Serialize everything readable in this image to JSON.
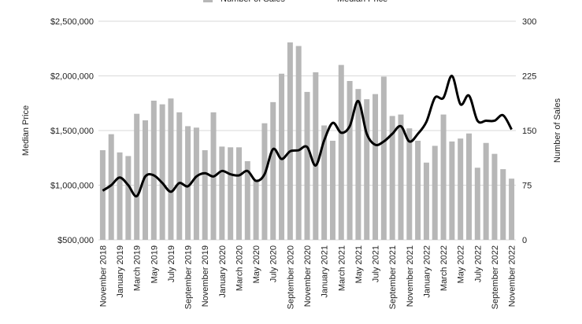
{
  "chart_data": {
    "type": "bar-line",
    "categories": [
      "November 2018",
      null,
      "January 2019",
      null,
      "March 2019",
      null,
      "May 2019",
      null,
      "July 2019",
      null,
      "September 2019",
      null,
      "November 2019",
      null,
      "January 2020",
      null,
      "March 2020",
      null,
      "May 2020",
      null,
      "July 2020",
      null,
      "September 2020",
      null,
      "November 2020",
      null,
      "January 2021",
      null,
      "March 2021",
      null,
      "May 2021",
      null,
      "July 2021",
      null,
      "September 2021",
      null,
      "November 2021",
      null,
      "January 2022",
      null,
      "March 2022",
      null,
      "May 2022",
      null,
      "July 2022",
      null,
      "September 2022",
      null,
      "November 2022"
    ],
    "series": [
      {
        "name": "Number of Sales",
        "color": "#b7b7b7",
        "kind": "bar",
        "axis": "y2",
        "values": [
          123,
          145,
          120,
          115,
          173,
          164,
          191,
          186,
          194,
          175,
          156,
          154,
          123,
          175,
          128,
          127,
          127,
          108,
          81,
          160,
          189,
          228,
          271,
          266,
          203,
          230,
          157,
          136,
          240,
          218,
          207,
          193,
          200,
          224,
          170,
          172,
          153,
          136,
          106,
          129,
          172,
          135,
          139,
          146,
          99,
          133,
          118,
          97,
          84
        ]
      },
      {
        "name": "Median Price",
        "color": "#000000",
        "kind": "line",
        "values": [
          950000,
          1000000,
          1070000,
          1000000,
          900000,
          1080000,
          1090000,
          1020000,
          940000,
          1020000,
          990000,
          1080000,
          1110000,
          1080000,
          1130000,
          1100000,
          1090000,
          1130000,
          1040000,
          1100000,
          1330000,
          1240000,
          1310000,
          1320000,
          1350000,
          1180000,
          1410000,
          1570000,
          1480000,
          1540000,
          1770000,
          1470000,
          1370000,
          1400000,
          1470000,
          1540000,
          1400000,
          1470000,
          1580000,
          1800000,
          1800000,
          2000000,
          1740000,
          1820000,
          1590000,
          1590000,
          1590000,
          1640000,
          1510000
        ]
      }
    ],
    "y_label": "Median Price",
    "y2_label": "Number of Sales",
    "ylim": [
      500000,
      2500000
    ],
    "yticks": [
      {
        "value": 500000,
        "label": "$500,000"
      },
      {
        "value": 1000000,
        "label": "$1,000,000"
      },
      {
        "value": 1500000,
        "label": "$1,500,000"
      },
      {
        "value": 2000000,
        "label": "$2,000,000"
      },
      {
        "value": 2500000,
        "label": "$2,500,000"
      }
    ],
    "y2lim": [
      0,
      300
    ],
    "y2ticks": [
      0,
      75,
      150,
      225,
      300
    ],
    "grid": true,
    "legend": "top"
  }
}
